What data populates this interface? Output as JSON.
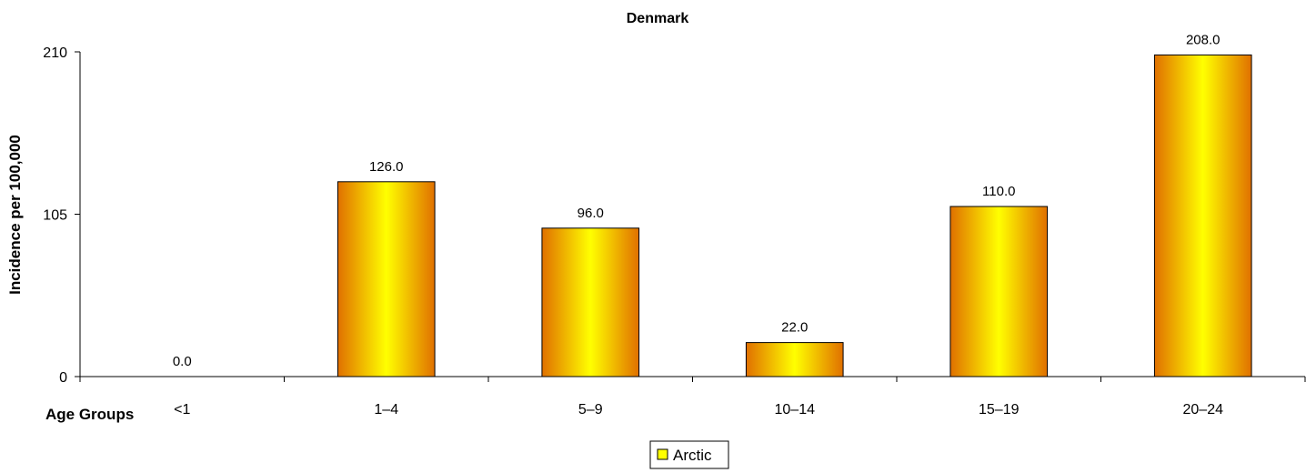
{
  "chart_data": {
    "type": "bar",
    "title": "Denmark",
    "xlabel": "Age Groups",
    "ylabel": "Incidence per 100,000",
    "categories": [
      "<1",
      "1–4",
      "5–9",
      "10–14",
      "15–19",
      "20–24"
    ],
    "series": [
      {
        "name": "Arctic",
        "values": [
          0.0,
          126.0,
          96.0,
          22.0,
          110.0,
          208.0
        ],
        "labels": [
          "0.0",
          "126.0",
          "96.0",
          "22.0",
          "110.0",
          "208.0"
        ]
      }
    ],
    "ylim": [
      0,
      210
    ],
    "yticks": [
      0,
      105,
      210
    ],
    "yticklabels": [
      "0",
      "105",
      "210"
    ],
    "grid": false,
    "legend": "bottom-center",
    "colors": {
      "bar_edge": "#e07000",
      "bar_center": "#ffff00",
      "bar_outline": "#000000",
      "axis": "#000000"
    }
  }
}
